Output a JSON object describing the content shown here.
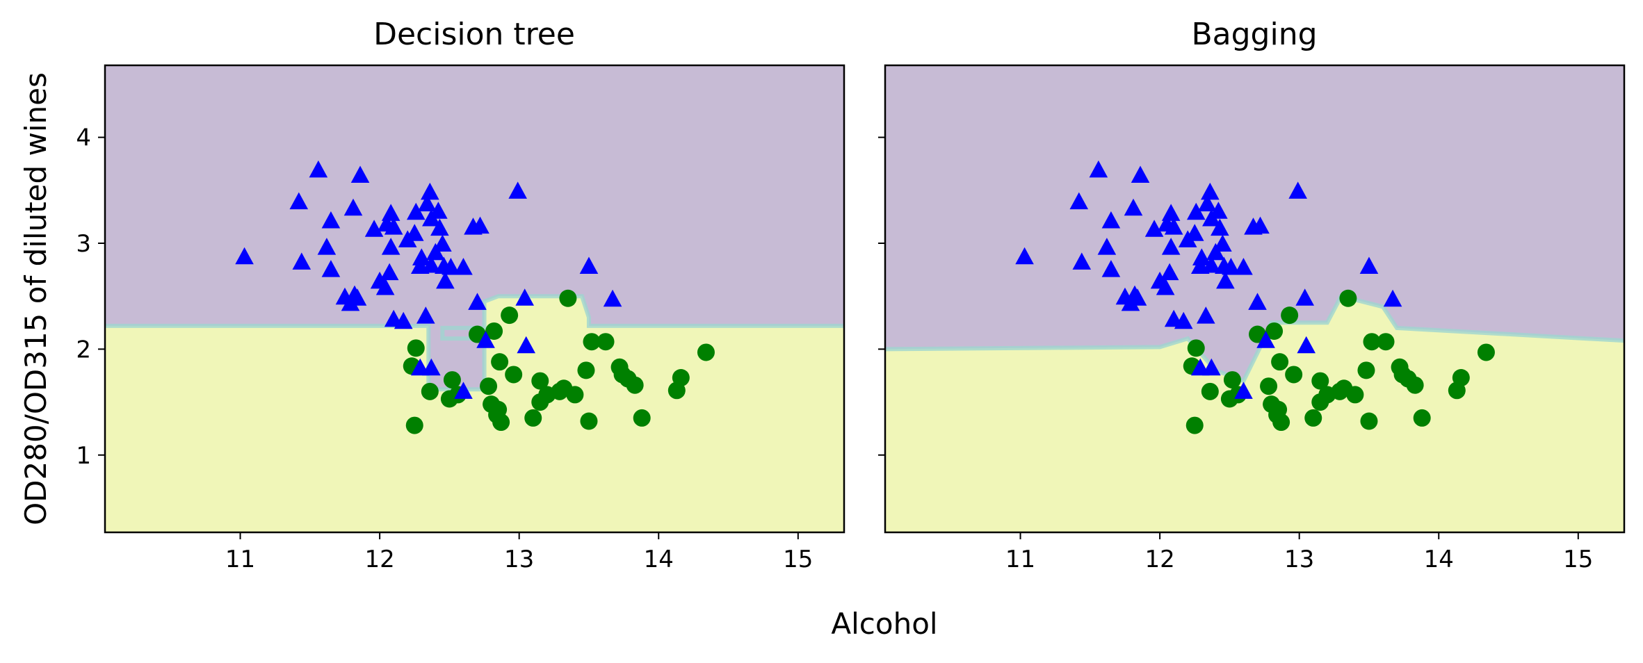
{
  "figure": {
    "xlabel": "Alcohol",
    "ylabel": "OD280/OD315 of diluted wines"
  },
  "colors": {
    "region_class0": "#c7bbd5",
    "region_class1": "#f0f6b8",
    "class0_marker": "#0000ff",
    "class1_marker": "#008000",
    "boundary_band": "#9fd6cf"
  },
  "chart_data": [
    {
      "type": "scatter",
      "title": "Decision tree",
      "xlim": [
        10.03,
        15.33
      ],
      "ylim": [
        0.27,
        4.68
      ],
      "x_ticks": [
        11,
        12,
        13,
        14,
        15
      ],
      "y_ticks": [
        1,
        2,
        3,
        4
      ],
      "y_tick_labels_visible": true,
      "grid": false,
      "legend": "none",
      "regions": {
        "description_values": "class-0 region above y=2.22 except a pocket around x 12.35-13.5, y 1.5-2.5 assigned to class 1",
        "upper_class": "class0",
        "lower_class": "class1",
        "boundary_polygon": [
          [
            10.03,
            2.22
          ],
          [
            12.35,
            2.22
          ],
          [
            12.35,
            1.62
          ],
          [
            12.75,
            1.62
          ],
          [
            12.75,
            2.2
          ],
          [
            12.45,
            2.2
          ],
          [
            12.45,
            2.1
          ],
          [
            12.75,
            2.1
          ],
          [
            12.75,
            2.45
          ],
          [
            12.85,
            2.5
          ],
          [
            13.45,
            2.5
          ],
          [
            13.5,
            2.3
          ],
          [
            13.5,
            2.22
          ],
          [
            15.33,
            2.22
          ]
        ]
      }
    },
    {
      "type": "scatter",
      "title": "Bagging",
      "xlim": [
        10.03,
        15.33
      ],
      "ylim": [
        0.27,
        4.68
      ],
      "x_ticks": [
        11,
        12,
        13,
        14,
        15
      ],
      "y_ticks": [
        1,
        2,
        3,
        4
      ],
      "y_tick_labels_visible": false,
      "grid": false,
      "legend": "none",
      "regions": {
        "upper_class": "class0",
        "lower_class": "class1",
        "boundary_polygon": [
          [
            10.03,
            2.0
          ],
          [
            12.0,
            2.02
          ],
          [
            12.2,
            2.1
          ],
          [
            12.4,
            1.8
          ],
          [
            12.6,
            1.7
          ],
          [
            12.75,
            2.1
          ],
          [
            12.8,
            2.25
          ],
          [
            13.2,
            2.25
          ],
          [
            13.3,
            2.5
          ],
          [
            13.6,
            2.4
          ],
          [
            13.7,
            2.2
          ],
          [
            15.33,
            2.08
          ]
        ]
      }
    }
  ],
  "scatter_points": {
    "class0_triangles": [
      [
        11.03,
        2.87
      ],
      [
        11.44,
        2.82
      ],
      [
        11.42,
        3.39
      ],
      [
        11.56,
        3.69
      ],
      [
        11.62,
        2.96
      ],
      [
        11.65,
        3.21
      ],
      [
        11.65,
        2.75
      ],
      [
        11.75,
        2.49
      ],
      [
        11.79,
        2.43
      ],
      [
        11.81,
        3.33
      ],
      [
        11.84,
        2.48
      ],
      [
        11.86,
        3.64
      ],
      [
        11.82,
        2.51
      ],
      [
        11.96,
        3.13
      ],
      [
        12.0,
        2.64
      ],
      [
        12.04,
        2.58
      ],
      [
        12.05,
        3.18
      ],
      [
        12.08,
        3.28
      ],
      [
        12.07,
        2.72
      ],
      [
        12.08,
        2.96
      ],
      [
        12.1,
        3.15
      ],
      [
        12.1,
        2.28
      ],
      [
        12.17,
        2.26
      ],
      [
        12.2,
        3.03
      ],
      [
        12.25,
        3.09
      ],
      [
        12.26,
        3.29
      ],
      [
        12.29,
        2.78
      ],
      [
        12.3,
        2.86
      ],
      [
        12.33,
        2.31
      ],
      [
        12.34,
        3.37
      ],
      [
        12.36,
        3.48
      ],
      [
        12.37,
        2.79
      ],
      [
        12.37,
        3.23
      ],
      [
        12.4,
        2.91
      ],
      [
        12.42,
        3.3
      ],
      [
        12.43,
        3.14
      ],
      [
        12.45,
        2.99
      ],
      [
        12.46,
        2.78
      ],
      [
        12.47,
        2.64
      ],
      [
        12.51,
        2.77
      ],
      [
        12.6,
        2.77
      ],
      [
        12.67,
        3.15
      ],
      [
        12.7,
        2.44
      ],
      [
        12.72,
        3.16
      ],
      [
        12.76,
        2.08
      ],
      [
        12.99,
        3.49
      ],
      [
        13.04,
        2.48
      ],
      [
        13.05,
        2.03
      ],
      [
        12.37,
        1.82
      ],
      [
        12.29,
        1.82
      ],
      [
        13.5,
        2.78
      ],
      [
        13.67,
        2.47
      ],
      [
        12.6,
        1.6
      ]
    ],
    "class1_circles": [
      [
        12.25,
        1.28
      ],
      [
        12.23,
        1.84
      ],
      [
        12.26,
        2.01
      ],
      [
        12.36,
        1.6
      ],
      [
        12.5,
        1.53
      ],
      [
        12.52,
        1.71
      ],
      [
        12.56,
        1.57
      ],
      [
        12.7,
        2.14
      ],
      [
        12.78,
        1.65
      ],
      [
        12.8,
        1.48
      ],
      [
        12.82,
        2.17
      ],
      [
        12.84,
        1.38
      ],
      [
        12.85,
        1.43
      ],
      [
        12.87,
        1.31
      ],
      [
        12.86,
        1.88
      ],
      [
        12.93,
        2.32
      ],
      [
        12.96,
        1.76
      ],
      [
        13.1,
        1.35
      ],
      [
        13.15,
        1.7
      ],
      [
        13.15,
        1.5
      ],
      [
        13.2,
        1.57
      ],
      [
        13.29,
        1.6
      ],
      [
        13.32,
        1.63
      ],
      [
        13.4,
        1.57
      ],
      [
        13.35,
        2.48
      ],
      [
        13.48,
        1.8
      ],
      [
        13.5,
        1.32
      ],
      [
        13.52,
        2.07
      ],
      [
        13.62,
        2.07
      ],
      [
        13.72,
        1.83
      ],
      [
        13.74,
        1.76
      ],
      [
        13.78,
        1.72
      ],
      [
        13.83,
        1.66
      ],
      [
        13.88,
        1.35
      ],
      [
        14.13,
        1.61
      ],
      [
        14.16,
        1.73
      ],
      [
        14.34,
        1.97
      ]
    ]
  }
}
